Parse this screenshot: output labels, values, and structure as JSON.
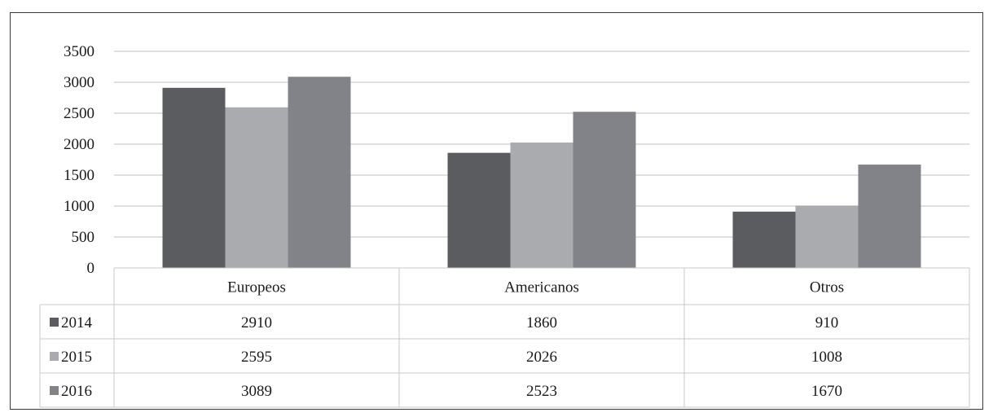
{
  "chart_data": {
    "type": "bar",
    "categories": [
      "Europeos",
      "Americanos",
      "Otros"
    ],
    "series": [
      {
        "name": "2014",
        "values": [
          2910,
          1860,
          910
        ],
        "color": "#5b5c60"
      },
      {
        "name": "2015",
        "values": [
          2595,
          2026,
          1008
        ],
        "color": "#a9abae"
      },
      {
        "name": "2016",
        "values": [
          3089,
          2523,
          1670
        ],
        "color": "#828388"
      }
    ],
    "ylim": [
      0,
      3500
    ],
    "yticks": [
      0,
      500,
      1000,
      1500,
      2000,
      2500,
      3000,
      3500
    ],
    "grid": true,
    "legend": "data-table",
    "title": "",
    "xlabel": "",
    "ylabel": ""
  },
  "colors": {
    "gridline": "#bfbfbf",
    "table_border": "#c8c8c8",
    "frame": "#3a3a3a"
  }
}
